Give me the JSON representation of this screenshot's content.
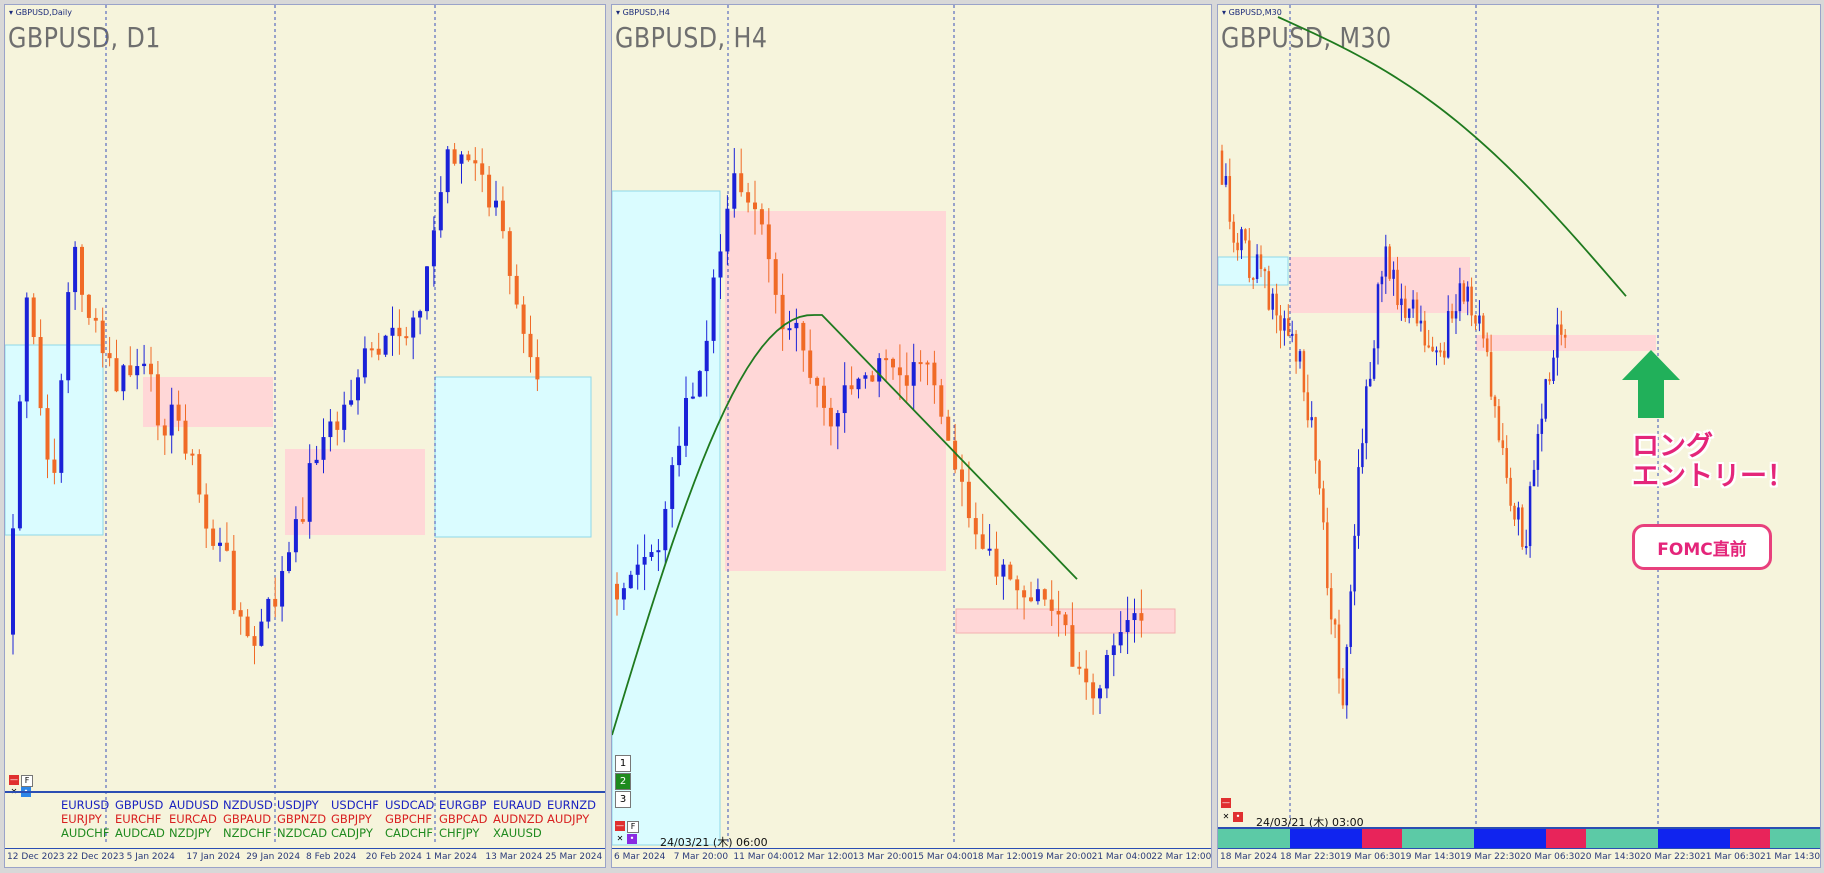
{
  "colors": {
    "background": "#f6f4dc",
    "bull_candle": "#1a22d8",
    "bear_candle": "#f06a26",
    "red_box": "#ffd7d7",
    "cyan_box": "#dafcff",
    "ma_line": "#1f7a1f",
    "axis_border": "#2b4eb3",
    "annotation_pink": "#e4257a",
    "arrow_green": "#21b05a"
  },
  "panels": [
    {
      "window_label": "GBPUSD,Daily",
      "symbol_title": "GBPUSD, D1",
      "x_axis_labels": [
        "12 Dec 2023",
        "22 Dec 2023",
        "5 Jan 2024",
        "17 Jan 2024",
        "29 Jan 2024",
        "8 Feb 2024",
        "20 Feb 2024",
        "1 Mar 2024",
        "13 Mar 2024",
        "25 Mar 2024"
      ],
      "currency_pairs": {
        "row1": [
          "EURUSD",
          "GBPUSD",
          "AUDUSD",
          "NZDUSD",
          "USDJPY",
          "USDCHF",
          "USDCAD",
          "EURGBP",
          "EURAUD",
          "EURNZD"
        ],
        "row2": [
          "EURJPY",
          "EURCHF",
          "EURCAD",
          "GBPAUD",
          "GBPNZD",
          "GBPJPY",
          "GBPCHF",
          "GBPCAD",
          "AUDNZD",
          "AUDJPY"
        ],
        "row3": [
          "AUDCHF",
          "AUDCAD",
          "NZDJPY",
          "NZDCHF",
          "NZDCAD",
          "CADJPY",
          "CADCHF",
          "CHFJPY",
          "XAUUSD",
          ""
        ]
      },
      "ctrl_buttons": [
        "F"
      ]
    },
    {
      "window_label": "GBPUSD,H4",
      "symbol_title": "GBPUSD, H4",
      "x_axis_labels": [
        "6 Mar 2024",
        "7 Mar 20:00",
        "11 Mar 04:00",
        "12 Mar 12:00",
        "13 Mar 20:00",
        "15 Mar 04:00",
        "18 Mar 12:00",
        "19 Mar 20:00",
        "21 Mar 04:00",
        "22 Mar 12:00"
      ],
      "timeframe_buttons": [
        "1",
        "2",
        "3"
      ],
      "datestamp": "24/03/21 (木) 06:00",
      "ctrl_buttons": [
        "F"
      ]
    },
    {
      "window_label": "GBPUSD,M30",
      "symbol_title": "GBPUSD, M30",
      "x_axis_labels": [
        "18 Mar 2024",
        "18 Mar 22:30",
        "19 Mar 06:30",
        "19 Mar 14:30",
        "19 Mar 22:30",
        "20 Mar 06:30",
        "20 Mar 14:30",
        "20 Mar 22:30",
        "21 Mar 06:30",
        "21 Mar 14:30"
      ],
      "datestamp": "24/03/21 (木) 03:00"
    }
  ],
  "annotations": {
    "long_entry_line1": "ロング",
    "long_entry_line2": "エントリー！",
    "fomc": "FOMC直前"
  }
}
